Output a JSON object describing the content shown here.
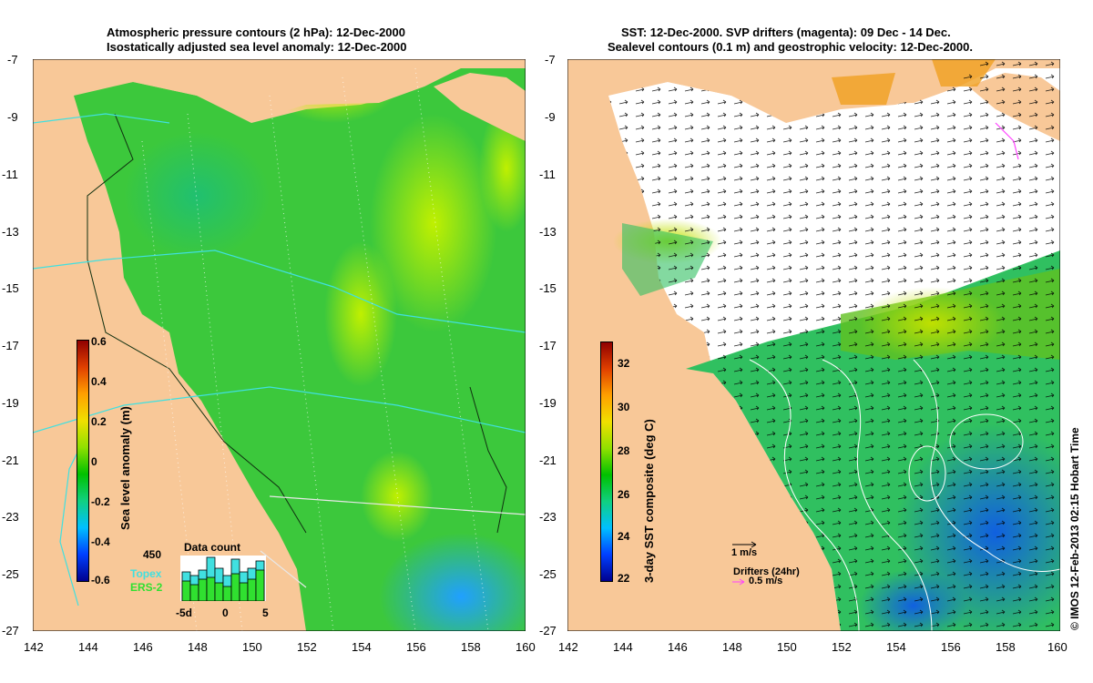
{
  "left_panel": {
    "title_line1": "Atmospheric pressure contours (2 hPa): 12-Dec-2000",
    "title_line2": "Isostatically adjusted sea level anomaly: 12-Dec-2000",
    "y_ticks": [
      "-7",
      "-9",
      "-11",
      "-13",
      "-15",
      "-17",
      "-19",
      "-21",
      "-23",
      "-25",
      "-27"
    ],
    "x_ticks": [
      "142",
      "144",
      "146",
      "148",
      "150",
      "152",
      "154",
      "156",
      "158",
      "160"
    ],
    "colorbar": {
      "label": "Sea level anomaly (m)",
      "ticks": [
        "0.6",
        "0.4",
        "0.2",
        "0",
        "-0.2",
        "-0.4",
        "-0.6"
      ],
      "colors": [
        "#00008f",
        "#0040ff",
        "#00c0ff",
        "#10d080",
        "#00c000",
        "#90e000",
        "#f0e000",
        "#ffa000",
        "#e04000",
        "#900000"
      ]
    },
    "data_count": {
      "title": "Data count",
      "max_label": "450",
      "series1": "Topex",
      "series2": "ERS-2",
      "x_ticks": [
        "-5d",
        "0",
        "5"
      ]
    }
  },
  "right_panel": {
    "title_line1": "SST: 12-Dec-2000. SVP drifters (magenta): 09 Dec - 14 Dec.",
    "title_line2": "Sealevel contours (0.1 m) and geostrophic velocity: 12-Dec-2000.",
    "y_ticks": [
      "-7",
      "-9",
      "-11",
      "-13",
      "-15",
      "-17",
      "-19",
      "-21",
      "-23",
      "-25",
      "-27"
    ],
    "x_ticks": [
      "142",
      "144",
      "146",
      "148",
      "150",
      "152",
      "154",
      "156",
      "158",
      "160"
    ],
    "colorbar": {
      "label": "3-day SST composite (deg C)",
      "ticks": [
        "32",
        "30",
        "28",
        "26",
        "24",
        "22"
      ],
      "colors": [
        "#00008f",
        "#0040ff",
        "#00c0ff",
        "#10d080",
        "#00c000",
        "#90e000",
        "#f0e000",
        "#ffa000",
        "#e04000",
        "#900000"
      ]
    },
    "scale_vector_label": "1 m/s",
    "drifters_label": "Drifters (24hr)",
    "drifter_scale_label": "0.5 m/s"
  },
  "credit": "© IMOS 12-Feb-2013 02:15 Hobart Time"
}
